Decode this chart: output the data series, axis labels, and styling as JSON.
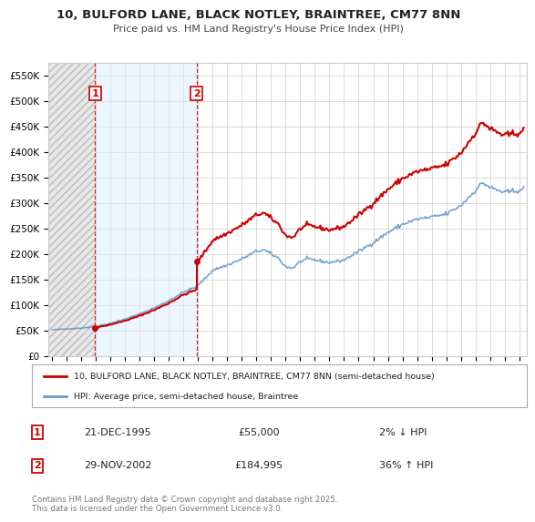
{
  "title1": "10, BULFORD LANE, BLACK NOTLEY, BRAINTREE, CM77 8NN",
  "title2": "Price paid vs. HM Land Registry's House Price Index (HPI)",
  "ylim": [
    0,
    575000
  ],
  "xlim_start": 1992.75,
  "xlim_end": 2025.5,
  "purchase1_year": 1995.97,
  "purchase1_price": 55000,
  "purchase2_year": 2002.91,
  "purchase2_price": 184995,
  "legend_line1": "10, BULFORD LANE, BLACK NOTLEY, BRAINTREE, CM77 8NN (semi-detached house)",
  "legend_line2": "HPI: Average price, semi-detached house, Braintree",
  "table_row1_num": "1",
  "table_row1_date": "21-DEC-1995",
  "table_row1_price": "£55,000",
  "table_row1_hpi": "2% ↓ HPI",
  "table_row2_num": "2",
  "table_row2_date": "29-NOV-2002",
  "table_row2_price": "£184,995",
  "table_row2_hpi": "36% ↑ HPI",
  "footer": "Contains HM Land Registry data © Crown copyright and database right 2025.\nThis data is licensed under the Open Government Licence v3.0.",
  "line_color_red": "#cc0000",
  "line_color_blue": "#6699cc",
  "bg_color": "#ffffff",
  "grid_color": "#cccccc",
  "label_box_color": "#cc0000",
  "shade_between_purchases_color": "#ddeeff",
  "hatch_color": "#bbbbbb"
}
